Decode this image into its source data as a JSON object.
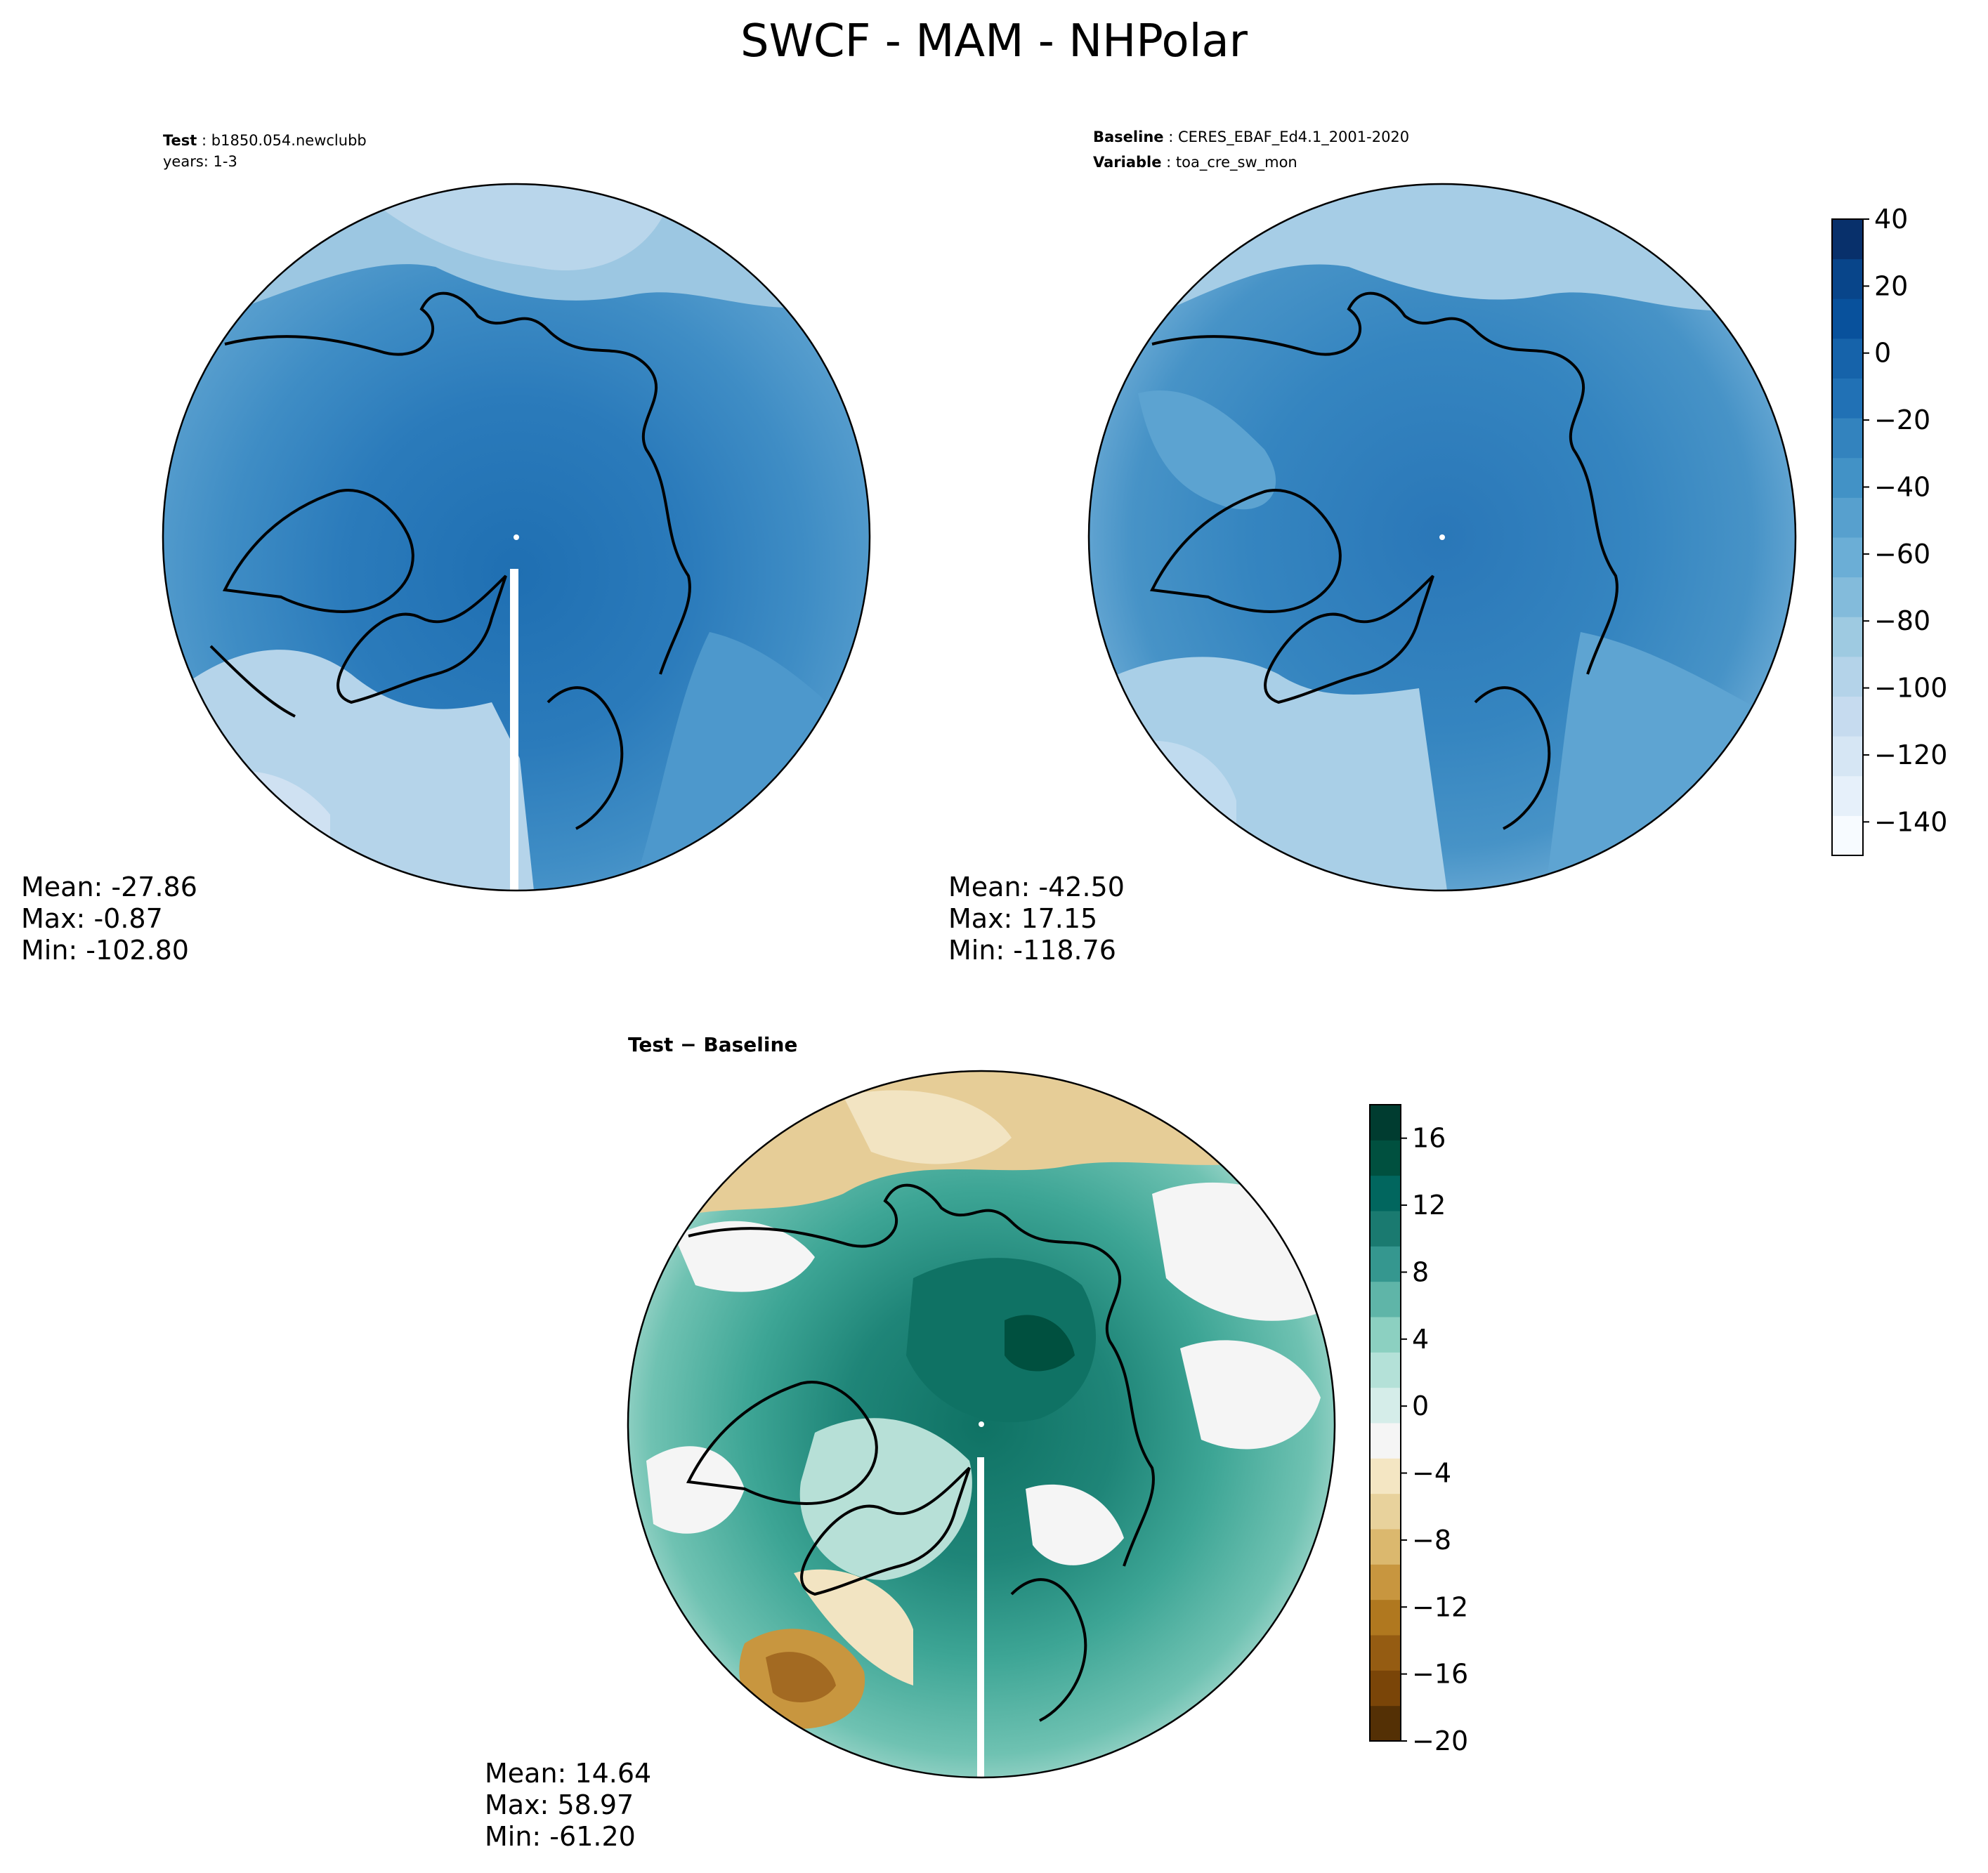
{
  "title": "SWCF - MAM - NHPolar",
  "panels": {
    "test": {
      "label1_bold": "Test",
      "label1_value": "b1850.054.newclubb",
      "label2": "years: 1-3",
      "mean": "Mean: -27.86",
      "max": "Max: -0.87",
      "min": "Min: -102.80"
    },
    "baseline": {
      "label1_bold": "Baseline",
      "label1_value": "CERES_EBAF_Ed4.1_2001-2020",
      "label2_bold": "Variable",
      "label2_value": "toa_cre_sw_mon",
      "mean": "Mean: -42.50",
      "max": "Max: 17.15",
      "min": "Min: -118.76"
    },
    "diff": {
      "title": "Test − Baseline",
      "mean": "Mean: 14.64",
      "max": "Max: 58.97",
      "min": "Min: -61.20"
    }
  },
  "colorbar_top": {
    "vmin": -150,
    "vmax": 40,
    "ticks": [
      "40",
      "20",
      "0",
      "−20",
      "−40",
      "−60",
      "−80",
      "−100",
      "−120",
      "−140"
    ],
    "colors": [
      "#f7fbff",
      "#e6f0fa",
      "#d6e6f4",
      "#c6dbef",
      "#b4d3e9",
      "#9ecae1",
      "#83bbdb",
      "#6baed6",
      "#57a0ce",
      "#4292c6",
      "#3383be",
      "#2171b5",
      "#1663aa",
      "#08519c",
      "#08458a",
      "#08306b"
    ]
  },
  "colorbar_diff": {
    "vmin": -20,
    "vmax": 18,
    "ticks": [
      "16",
      "12",
      "8",
      "4",
      "0",
      "−4",
      "−8",
      "−12",
      "−16",
      "−20"
    ],
    "colors": [
      "#543005",
      "#7a4508",
      "#955c12",
      "#b0781f",
      "#c8963f",
      "#dbb86e",
      "#e8d29c",
      "#f4e6c3",
      "#f5f5f5",
      "#d5ede9",
      "#b4e1d8",
      "#8cd0c1",
      "#5fb5a8",
      "#35978f",
      "#1a7a70",
      "#01665e",
      "#00503f",
      "#003c30"
    ]
  },
  "map_colors": {
    "test_ocean_south": "#b5d4ea",
    "test_mid": "#4a96c9",
    "test_core": "#2b7bbb",
    "baseline_outer": "#8fc1de",
    "baseline_mid": "#4793c7",
    "baseline_core": "#2a77b8",
    "diff_core": "#0f7264",
    "diff_ring": "#3da595",
    "diff_light": "#b7e0d7",
    "diff_tan": "#e6cd97",
    "diff_brown": "#a36a22"
  }
}
